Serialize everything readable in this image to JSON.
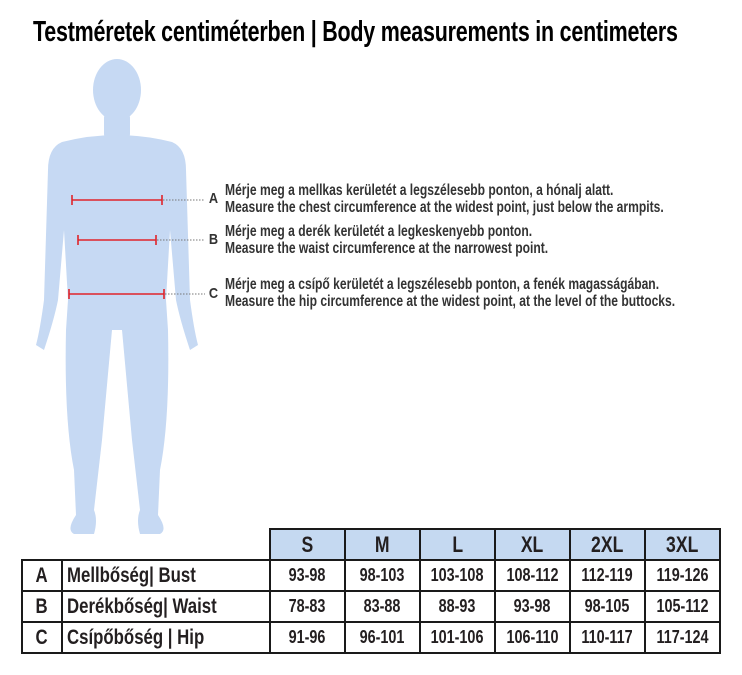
{
  "title": "Testméretek centiméterben | Body measurements in centimeters",
  "colors": {
    "body": "#c6d9f3",
    "measure_line": "#e0242b",
    "header_fill": "#c5d9f1"
  },
  "measurements": [
    {
      "letter": "A",
      "hu": "Mérje meg a mellkas kerületét a legszélesebb ponton, a hónalj alatt.",
      "en": "Measure the chest circumference at the widest point, just below the armpits."
    },
    {
      "letter": "B",
      "hu": "Mérje meg a derék kerületét a legkeskenyebb ponton.",
      "en": "Measure the waist circumference at the narrowest point."
    },
    {
      "letter": "C",
      "hu": "Mérje meg a csípő kerületét a legszélesebb ponton, a fenék magasságában.",
      "en": "Measure the hip circumference at the widest point, at the level of the buttocks."
    }
  ],
  "table": {
    "sizes": [
      "S",
      "M",
      "L",
      "XL",
      "2XL",
      "3XL"
    ],
    "rows": [
      {
        "letter": "A",
        "label": "Mellbőség| Bust",
        "values": [
          "93-98",
          "98-103",
          "103-108",
          "108-112",
          "112-119",
          "119-126"
        ]
      },
      {
        "letter": "B",
        "label": "Derékbőség| Waist",
        "values": [
          "78-83",
          "83-88",
          "88-93",
          "93-98",
          "98-105",
          "105-112"
        ]
      },
      {
        "letter": "C",
        "label": "Csípőbőség | Hip",
        "values": [
          "91-96",
          "96-101",
          "101-106",
          "106-110",
          "110-117",
          "117-124"
        ]
      }
    ]
  }
}
